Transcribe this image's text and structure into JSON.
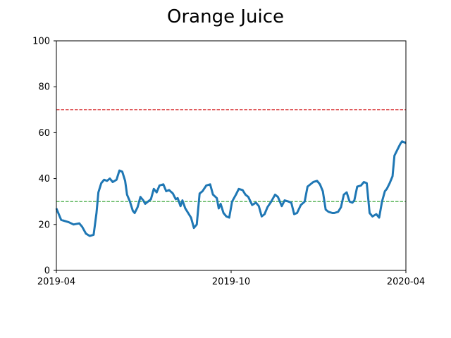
{
  "chart_data": {
    "type": "line",
    "title": "Orange Juice",
    "xlabel": "",
    "ylabel": "",
    "xlim": [
      "2019-04-01",
      "2020-04-01"
    ],
    "ylim": [
      0,
      100
    ],
    "x_ticks": [
      {
        "value": "2019-04-01",
        "label": "2019-04"
      },
      {
        "value": "2019-10-01",
        "label": "2019-10"
      },
      {
        "value": "2020-04-01",
        "label": "2020-04"
      }
    ],
    "y_ticks": [
      0,
      20,
      40,
      60,
      80,
      100
    ],
    "grid": false,
    "reference_lines": [
      {
        "y": 70,
        "color": "#d62728",
        "style": "dashed"
      },
      {
        "y": 30,
        "color": "#2ca02c",
        "style": "dashed"
      }
    ],
    "series": [
      {
        "color": "#1f77b4",
        "points": [
          [
            "2019-04-01",
            27
          ],
          [
            "2019-04-06",
            22
          ],
          [
            "2019-04-10",
            21.5
          ],
          [
            "2019-04-14",
            21
          ],
          [
            "2019-04-19",
            20
          ],
          [
            "2019-04-25",
            20.5
          ],
          [
            "2019-04-28",
            19
          ],
          [
            "2019-05-02",
            16
          ],
          [
            "2019-05-06",
            15
          ],
          [
            "2019-05-10",
            15.5
          ],
          [
            "2019-05-13",
            25
          ],
          [
            "2019-05-15",
            34
          ],
          [
            "2019-05-18",
            38
          ],
          [
            "2019-05-21",
            39.5
          ],
          [
            "2019-05-24",
            39
          ],
          [
            "2019-05-27",
            40
          ],
          [
            "2019-05-30",
            38.5
          ],
          [
            "2019-06-03",
            39.5
          ],
          [
            "2019-06-06",
            43.5
          ],
          [
            "2019-06-09",
            43
          ],
          [
            "2019-06-12",
            39
          ],
          [
            "2019-06-14",
            33
          ],
          [
            "2019-06-17",
            30
          ],
          [
            "2019-06-20",
            26
          ],
          [
            "2019-06-22",
            25
          ],
          [
            "2019-06-25",
            27.5
          ],
          [
            "2019-06-28",
            32
          ],
          [
            "2019-07-01",
            30.5
          ],
          [
            "2019-07-03",
            29
          ],
          [
            "2019-07-06",
            30
          ],
          [
            "2019-07-09",
            31
          ],
          [
            "2019-07-12",
            35.5
          ],
          [
            "2019-07-15",
            34
          ],
          [
            "2019-07-18",
            37
          ],
          [
            "2019-07-22",
            37.5
          ],
          [
            "2019-07-25",
            34.5
          ],
          [
            "2019-07-28",
            35
          ],
          [
            "2019-08-01",
            33.5
          ],
          [
            "2019-08-04",
            31
          ],
          [
            "2019-08-06",
            31.5
          ],
          [
            "2019-08-09",
            28
          ],
          [
            "2019-08-11",
            30.5
          ],
          [
            "2019-08-14",
            27
          ],
          [
            "2019-08-17",
            25
          ],
          [
            "2019-08-20",
            23
          ],
          [
            "2019-08-23",
            18.5
          ],
          [
            "2019-08-26",
            20
          ],
          [
            "2019-08-29",
            33.5
          ],
          [
            "2019-09-01",
            34.5
          ],
          [
            "2019-09-05",
            37
          ],
          [
            "2019-09-09",
            37.5
          ],
          [
            "2019-09-12",
            33
          ],
          [
            "2019-09-16",
            31.5
          ],
          [
            "2019-09-18",
            27
          ],
          [
            "2019-09-20",
            29
          ],
          [
            "2019-09-23",
            25
          ],
          [
            "2019-09-26",
            23.5
          ],
          [
            "2019-09-29",
            23
          ],
          [
            "2019-10-02",
            30
          ],
          [
            "2019-10-06",
            33
          ],
          [
            "2019-10-09",
            35.5
          ],
          [
            "2019-10-13",
            35
          ],
          [
            "2019-10-16",
            33
          ],
          [
            "2019-10-19",
            32
          ],
          [
            "2019-10-23",
            28.5
          ],
          [
            "2019-10-27",
            29.5
          ],
          [
            "2019-10-30",
            28
          ],
          [
            "2019-11-02",
            23.5
          ],
          [
            "2019-11-05",
            24.5
          ],
          [
            "2019-11-08",
            27.5
          ],
          [
            "2019-11-12",
            30
          ],
          [
            "2019-11-16",
            33
          ],
          [
            "2019-11-19",
            32
          ],
          [
            "2019-11-23",
            28
          ],
          [
            "2019-11-26",
            30.5
          ],
          [
            "2019-11-30",
            30
          ],
          [
            "2019-12-03",
            29.5
          ],
          [
            "2019-12-06",
            24.5
          ],
          [
            "2019-12-09",
            25
          ],
          [
            "2019-12-13",
            28.5
          ],
          [
            "2019-12-17",
            30
          ],
          [
            "2019-12-20",
            36.5
          ],
          [
            "2019-12-23",
            37.5
          ],
          [
            "2019-12-26",
            38.5
          ],
          [
            "2019-12-30",
            39
          ],
          [
            "2020-01-02",
            37.5
          ],
          [
            "2020-01-05",
            34.5
          ],
          [
            "2020-01-08",
            26.5
          ],
          [
            "2020-01-11",
            25.5
          ],
          [
            "2020-01-15",
            25
          ],
          [
            "2020-01-17",
            25
          ],
          [
            "2020-01-21",
            25.5
          ],
          [
            "2020-01-24",
            27.5
          ],
          [
            "2020-01-27",
            33
          ],
          [
            "2020-01-30",
            34
          ],
          [
            "2020-02-02",
            30
          ],
          [
            "2020-02-05",
            29.5
          ],
          [
            "2020-02-07",
            30.5
          ],
          [
            "2020-02-10",
            36.5
          ],
          [
            "2020-02-14",
            37
          ],
          [
            "2020-02-17",
            38.5
          ],
          [
            "2020-02-20",
            38
          ],
          [
            "2020-02-23",
            25
          ],
          [
            "2020-02-26",
            23.5
          ],
          [
            "2020-03-01",
            24.5
          ],
          [
            "2020-03-04",
            23
          ],
          [
            "2020-03-07",
            30
          ],
          [
            "2020-03-10",
            34.5
          ],
          [
            "2020-03-12",
            35.5
          ],
          [
            "2020-03-15",
            38
          ],
          [
            "2020-03-18",
            41
          ],
          [
            "2020-03-20",
            50
          ],
          [
            "2020-03-23",
            52.5
          ],
          [
            "2020-03-26",
            55
          ],
          [
            "2020-03-28",
            56.2
          ],
          [
            "2020-04-01",
            55.5
          ]
        ]
      }
    ]
  }
}
